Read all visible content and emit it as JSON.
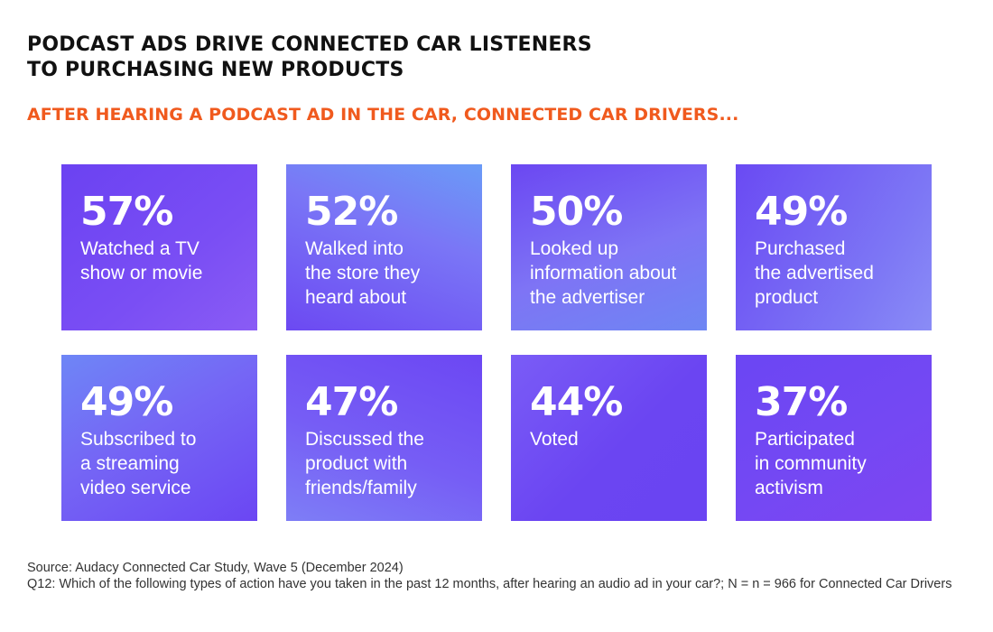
{
  "header": {
    "title_line1": "PODCAST ADS DRIVE CONNECTED CAR LISTENERS",
    "title_line2": "TO PURCHASING NEW PRODUCTS",
    "subtitle": "AFTER HEARING A PODCAST AD IN THE CAR, CONNECTED CAR DRIVERS..."
  },
  "colors": {
    "accent": "#f05a1e",
    "card": "#6b47f3",
    "title": "#111111"
  },
  "stats": [
    {
      "value": "57%",
      "label": "Watched a TV\nshow or movie"
    },
    {
      "value": "52%",
      "label": "Walked into\nthe store they\nheard about"
    },
    {
      "value": "50%",
      "label": "Looked up\ninformation about\nthe advertiser"
    },
    {
      "value": "49%",
      "label": "Purchased\nthe advertised\nproduct"
    },
    {
      "value": "49%",
      "label": "Subscribed to\na streaming\nvideo service"
    },
    {
      "value": "47%",
      "label": "Discussed the\nproduct with\nfriends/family"
    },
    {
      "value": "44%",
      "label": "Voted"
    },
    {
      "value": "37%",
      "label": "Participated\nin community\nactivism"
    }
  ],
  "footnote": {
    "source": "Source: Audacy Connected Car Study, Wave 5 (December 2024)",
    "question": "Q12: Which of the following types of action have you taken in the past 12 months, after hearing an audio ad in your car?; N = n = 966 for Connected Car Drivers"
  }
}
